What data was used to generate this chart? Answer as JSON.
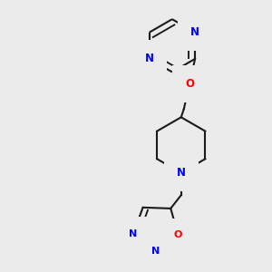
{
  "bg_color": "#ebebeb",
  "bond_color": "#1a1a1a",
  "nitrogen_color": "#0000ff",
  "oxygen_color": "#ff0000",
  "lw": 1.5,
  "dbo": 0.018,
  "figsize": [
    3.0,
    3.0
  ],
  "dpi": 100,
  "xlim": [
    0.05,
    0.85
  ],
  "ylim": [
    0.02,
    0.98
  ]
}
